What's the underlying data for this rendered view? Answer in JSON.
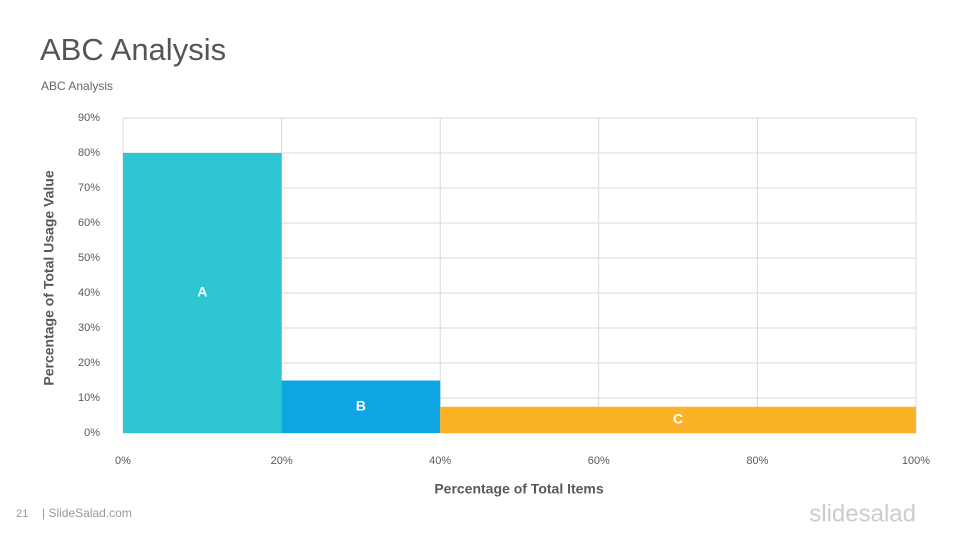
{
  "chart_data": {
    "type": "bar",
    "title": "ABC Analysis",
    "subtitle": "ABC Analysis",
    "xlabel": "Percentage of Total Items",
    "ylabel": "Percentage of Total Usage Value",
    "categories": [
      "A",
      "B",
      "C"
    ],
    "bins": [
      0,
      20,
      40,
      100
    ],
    "values": [
      80,
      15,
      7.5
    ],
    "colors": [
      "#2ec5d3",
      "#0ea5e4",
      "#fbb225"
    ],
    "xlim": [
      0,
      100
    ],
    "xticks": [
      {
        "value": 0,
        "label": "0%"
      },
      {
        "value": 20,
        "label": "20%"
      },
      {
        "value": 40,
        "label": "40%"
      },
      {
        "value": 60,
        "label": "60%"
      },
      {
        "value": 80,
        "label": "80%"
      },
      {
        "value": 100,
        "label": "100%"
      }
    ],
    "ylim": [
      0,
      90
    ],
    "yticks": [
      {
        "value": 0,
        "label": "0%"
      },
      {
        "value": 10,
        "label": "10%"
      },
      {
        "value": 20,
        "label": "20%"
      },
      {
        "value": 30,
        "label": "30%"
      },
      {
        "value": 40,
        "label": "40%"
      },
      {
        "value": 50,
        "label": "50%"
      },
      {
        "value": 60,
        "label": "60%"
      },
      {
        "value": 70,
        "label": "70%"
      },
      {
        "value": 80,
        "label": "80%"
      },
      {
        "value": 90,
        "label": "90%"
      }
    ],
    "grid": true
  },
  "footer": {
    "page": "21",
    "site": "| SlideSalad.com",
    "logo": "slidesalad"
  }
}
